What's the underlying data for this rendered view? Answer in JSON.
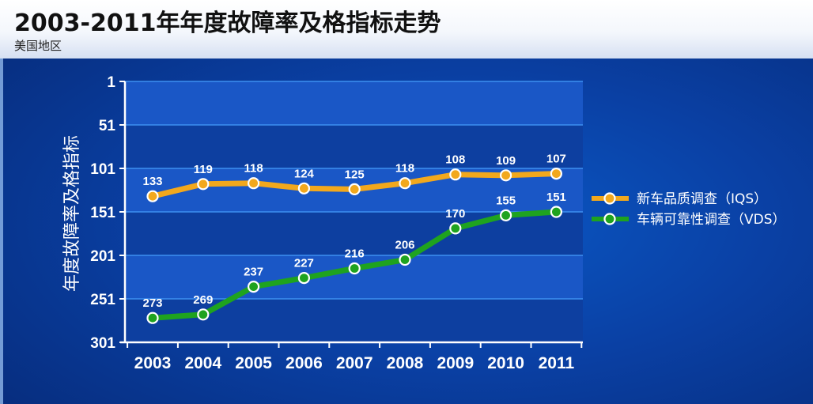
{
  "chart_data": {
    "type": "line",
    "title": "2003-2011年年度故障率及格指标走势",
    "subtitle": "美国地区",
    "xlabel": "",
    "ylabel": "年度故障率及格指标",
    "y_inverted": true,
    "ylim": [
      1,
      301
    ],
    "yticks": [
      1,
      51,
      101,
      151,
      201,
      251,
      301
    ],
    "categories": [
      "2003",
      "2004",
      "2005",
      "2006",
      "2007",
      "2008",
      "2009",
      "2010",
      "2011"
    ],
    "series": [
      {
        "name": "新车品质调查（IQS）",
        "color": "#f2a81d",
        "values": [
          133,
          119,
          118,
          124,
          125,
          118,
          108,
          109,
          107
        ]
      },
      {
        "name": "车辆可靠性调查（VDS）",
        "color": "#1fa31f",
        "values": [
          273,
          269,
          237,
          227,
          216,
          206,
          170,
          155,
          151
        ]
      }
    ],
    "legend_position": "right",
    "grid": true
  },
  "colors": {
    "plot_band_dark": "#0d3fa0",
    "plot_band_light": "#1a57c6",
    "grid_line": "#3d8ff0",
    "axis": "#ffffff"
  }
}
